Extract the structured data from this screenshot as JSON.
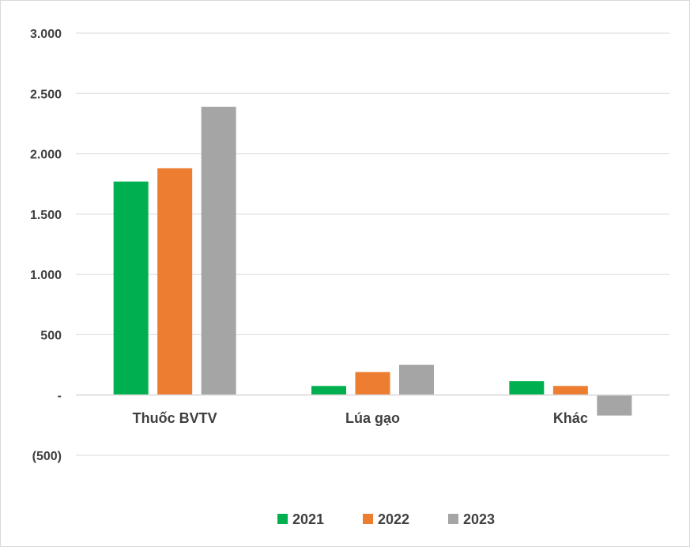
{
  "chart_data": {
    "type": "bar",
    "categories": [
      "Thuốc BVTV",
      "Lúa gạo",
      "Khác"
    ],
    "series": [
      {
        "name": "2021",
        "color": "#00b050",
        "values": [
          1770,
          75,
          115
        ]
      },
      {
        "name": "2022",
        "color": "#ed7d31",
        "values": [
          1880,
          190,
          75
        ]
      },
      {
        "name": "2023",
        "color": "#a5a5a5",
        "values": [
          2390,
          250,
          -170
        ]
      }
    ],
    "ylim": [
      -500,
      3000
    ],
    "yticks": [
      {
        "value": 3000,
        "label": "3.000"
      },
      {
        "value": 2500,
        "label": "2.500"
      },
      {
        "value": 2000,
        "label": "2.000"
      },
      {
        "value": 1500,
        "label": "1.500"
      },
      {
        "value": 1000,
        "label": "1.000"
      },
      {
        "value": 500,
        "label": "500"
      },
      {
        "value": 0,
        "label": "-"
      },
      {
        "value": -500,
        "label": "(500)"
      }
    ],
    "grid": true,
    "legend_position": "bottom",
    "title": "",
    "xlabel": "",
    "ylabel": ""
  }
}
